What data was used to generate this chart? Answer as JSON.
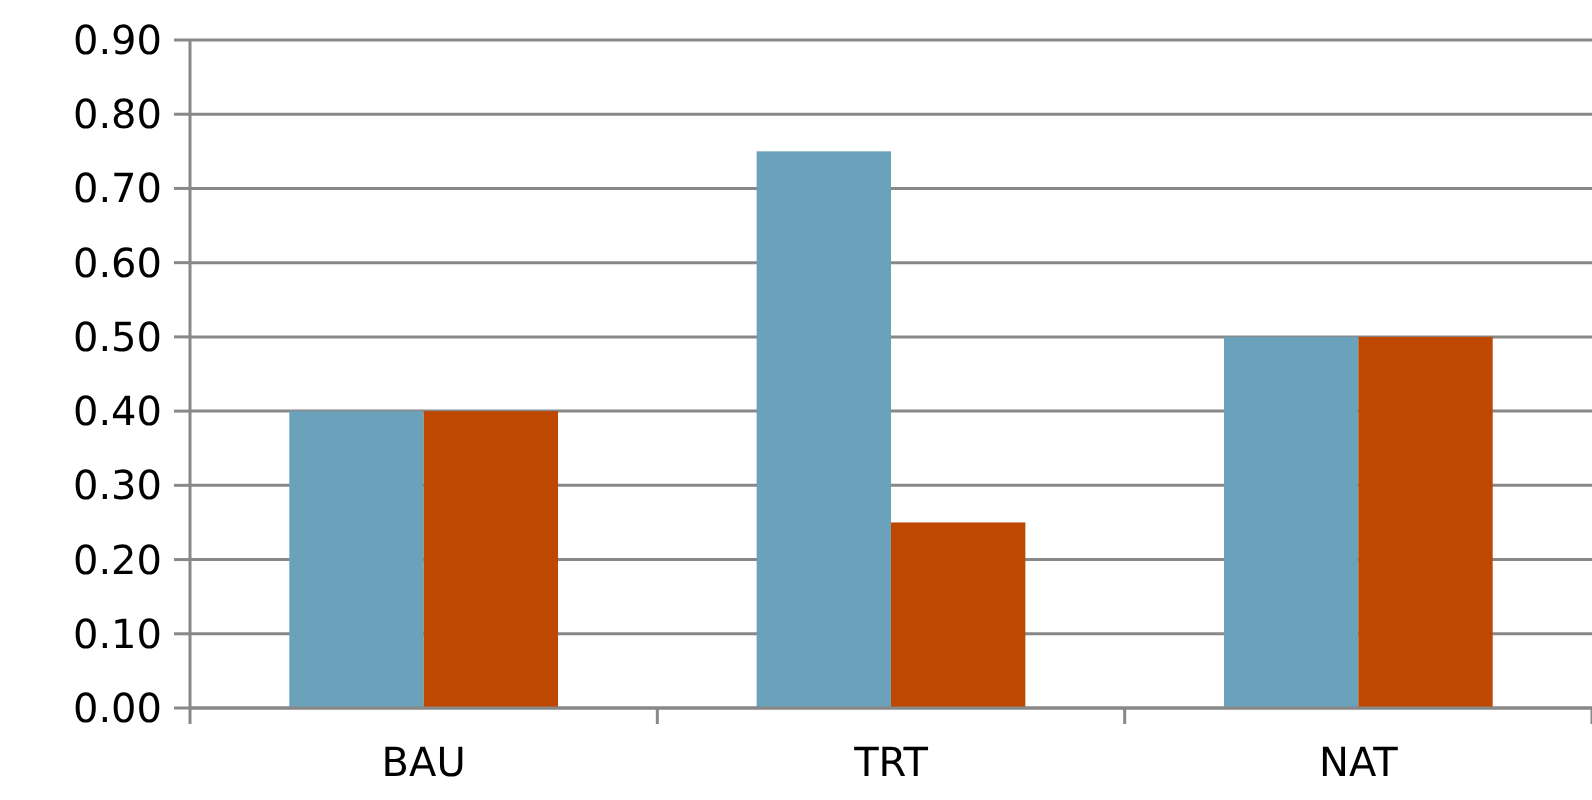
{
  "chart_data": {
    "type": "bar",
    "categories": [
      "BAU",
      "TRT",
      "NAT"
    ],
    "series": [
      {
        "color": "#6aa2bb",
        "values": [
          0.4,
          0.75,
          0.5
        ]
      },
      {
        "color": "#bf4800",
        "values": [
          0.4,
          0.25,
          0.5
        ]
      }
    ],
    "ylim": [
      0,
      0.9
    ],
    "yticks": [
      {
        "value": 0,
        "label": "0.00"
      },
      {
        "value": 0.1,
        "label": "0.10"
      },
      {
        "value": 0.2,
        "label": "0.20"
      },
      {
        "value": 0.3,
        "label": "0.30"
      },
      {
        "value": 0.4,
        "label": "0.40"
      },
      {
        "value": 0.5,
        "label": "0.50"
      },
      {
        "value": 0.6,
        "label": "0.60"
      },
      {
        "value": 0.7,
        "label": "0.70"
      },
      {
        "value": 0.8,
        "label": "0.80"
      },
      {
        "value": 0.9,
        "label": "0.90"
      }
    ],
    "grid": "y"
  }
}
